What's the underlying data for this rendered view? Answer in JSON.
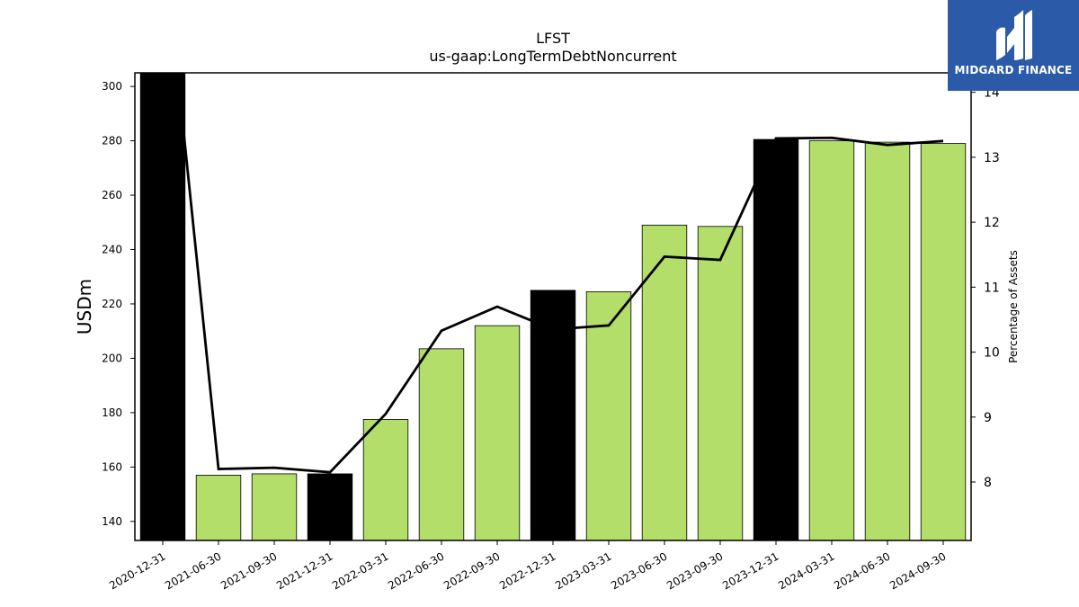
{
  "chart_data": {
    "type": "bar",
    "title": "LFST",
    "subtitle": "us-gaap:LongTermDebtNoncurrent",
    "ylabel": "USDm",
    "y2label": "Percentage of Assets",
    "categories": [
      "2020-12-31",
      "2021-06-30",
      "2021-09-30",
      "2021-12-31",
      "2022-03-31",
      "2022-06-30",
      "2022-09-30",
      "2022-12-31",
      "2023-03-31",
      "2023-06-30",
      "2023-09-30",
      "2023-12-31",
      "2024-03-31",
      "2024-06-30",
      "2024-09-30"
    ],
    "series": [
      {
        "type": "bar",
        "values": [
          305,
          157,
          157.5,
          157.5,
          177.5,
          203.5,
          212,
          225,
          224.5,
          249,
          248.5,
          280.5,
          280,
          279.5,
          279
        ],
        "highlight": [
          true,
          false,
          false,
          true,
          false,
          false,
          false,
          true,
          false,
          false,
          false,
          true,
          false,
          false,
          false
        ],
        "colors": {
          "highlight": "#000000",
          "normal": "#b3de6a"
        }
      },
      {
        "type": "line",
        "axis": "right",
        "values": [
          16.5,
          8.2,
          8.22,
          8.15,
          9.05,
          10.33,
          10.7,
          10.35,
          10.41,
          11.47,
          11.42,
          13.29,
          13.3,
          13.19,
          13.25
        ],
        "color": "#000000"
      }
    ],
    "ylim": [
      133,
      305
    ],
    "y2lim": [
      7.1,
      14.3
    ],
    "yticks": [
      140,
      160,
      180,
      200,
      220,
      240,
      260,
      280,
      300
    ],
    "y2ticks": [
      8,
      9,
      10,
      11,
      12,
      13,
      14
    ],
    "grid": false
  },
  "logo": {
    "text": "MIDGARD FINANCE",
    "bg_color": "#2b5aa8"
  }
}
